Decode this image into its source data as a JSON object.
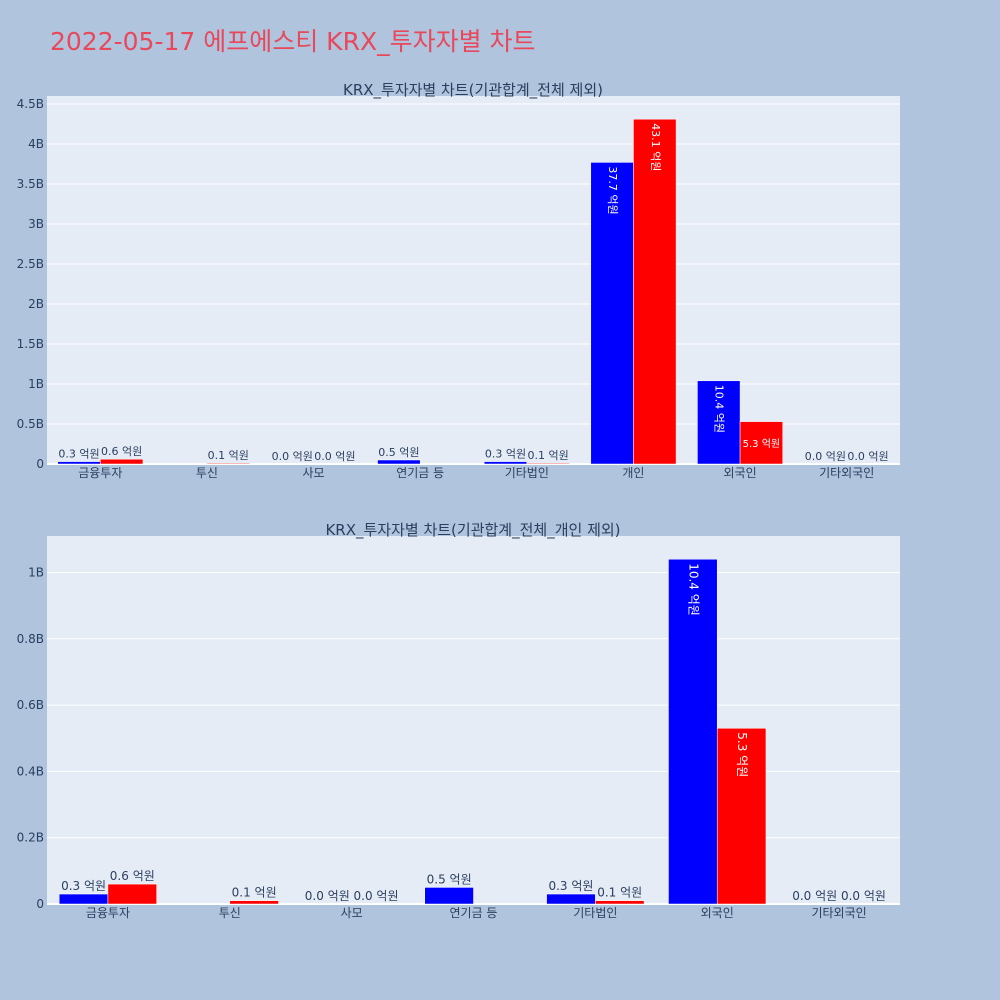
{
  "title": "2022-05-17 에프에스티 KRX_투자자별 차트",
  "colors": {
    "background": "#b0c4de",
    "plot_bg": "#e5ecf6",
    "title": "#e8485a",
    "buy": "#0000ff",
    "sell": "#ff0000"
  },
  "chart_data": [
    {
      "type": "bar",
      "title": "KRX_투자자별 차트(기관합계_전체 제외)",
      "categories": [
        "금융투자",
        "투신",
        "사모",
        "연기금 등",
        "기타법인",
        "개인",
        "외국인",
        "기타외국인"
      ],
      "series": [
        {
          "color": "#0000ff",
          "values": [
            30000000,
            0,
            0,
            50000000,
            30000000,
            3770000000,
            1040000000,
            0
          ],
          "labels": [
            "0.3 억원",
            "",
            "0.0 억원",
            "0.5 억원",
            "0.3 억원",
            "37.7 억원",
            "10.4 억원",
            "0.0 억원"
          ]
        },
        {
          "color": "#ff0000",
          "values": [
            60000000,
            10000000,
            0,
            0,
            10000000,
            4310000000,
            530000000,
            0
          ],
          "labels": [
            "0.6 억원",
            "0.1 억원",
            "0.0 억원",
            "",
            "0.1 억원",
            "43.1 억원",
            "5.3 억원",
            "0.0 억원"
          ]
        }
      ],
      "ylim": [
        0,
        4600000000
      ],
      "yticks": [
        0,
        500000000,
        1000000000,
        1500000000,
        2000000000,
        2500000000,
        3000000000,
        3500000000,
        4000000000,
        4500000000
      ],
      "ytick_labels": [
        "0",
        "0.5B",
        "1B",
        "1.5B",
        "2B",
        "2.5B",
        "3B",
        "3.5B",
        "4B",
        "4.5B"
      ],
      "grid": true,
      "legend": "none"
    },
    {
      "type": "bar",
      "title": "KRX_투자자별 차트(기관합계_전체_개인 제외)",
      "categories": [
        "금융투자",
        "투신",
        "사모",
        "연기금 등",
        "기타법인",
        "외국인",
        "기타외국인"
      ],
      "series": [
        {
          "color": "#0000ff",
          "values": [
            30000000,
            0,
            0,
            50000000,
            30000000,
            1040000000,
            0
          ],
          "labels": [
            "0.3 억원",
            "",
            "0.0 억원",
            "0.5 억원",
            "0.3 억원",
            "10.4 억원",
            "0.0 억원"
          ]
        },
        {
          "color": "#ff0000",
          "values": [
            60000000,
            10000000,
            0,
            0,
            10000000,
            530000000,
            0
          ],
          "labels": [
            "0.6 억원",
            "0.1 억원",
            "0.0 억원",
            "",
            "0.1 억원",
            "5.3 억원",
            "0.0 억원"
          ]
        }
      ],
      "ylim": [
        0,
        1110000000
      ],
      "yticks": [
        0,
        200000000,
        400000000,
        600000000,
        800000000,
        1000000000
      ],
      "ytick_labels": [
        "0",
        "0.2B",
        "0.4B",
        "0.6B",
        "0.8B",
        "1B"
      ],
      "grid": true,
      "legend": "none"
    }
  ]
}
